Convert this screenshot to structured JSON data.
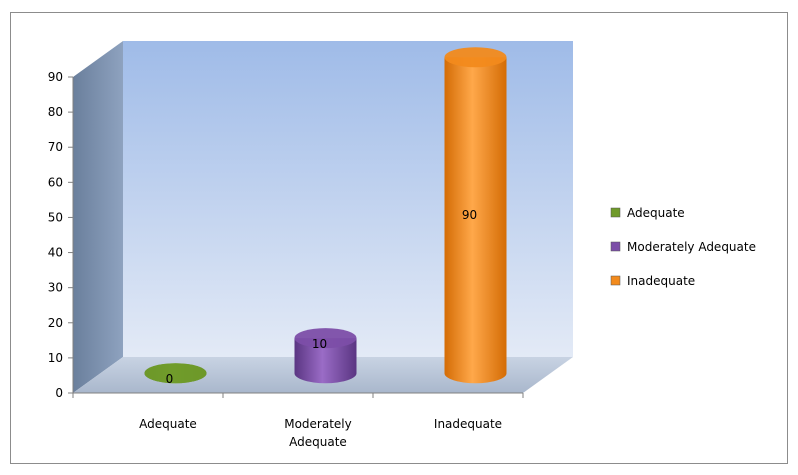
{
  "chart_data": {
    "type": "bar",
    "style": "3d-cylinder",
    "categories": [
      "Adequate",
      "Moderately Adequate",
      "Inadequate"
    ],
    "category_lines": [
      [
        "Adequate"
      ],
      [
        "Moderately",
        "Adequate"
      ],
      [
        "Inadequate"
      ]
    ],
    "values": [
      0,
      10,
      90
    ],
    "ylim": [
      0,
      90
    ],
    "yticks": [
      0,
      10,
      20,
      30,
      40,
      50,
      60,
      70,
      80,
      90
    ],
    "grid": false,
    "legend": {
      "position": "right",
      "entries": [
        "Adequate",
        "Moderately Adequate",
        "Inadequate"
      ]
    },
    "colors": [
      "#6f9a2a",
      "#7c4ea8",
      "#f28a1c"
    ],
    "wall_colors": [
      "#a7c1ea",
      "#dfe7f5"
    ]
  }
}
